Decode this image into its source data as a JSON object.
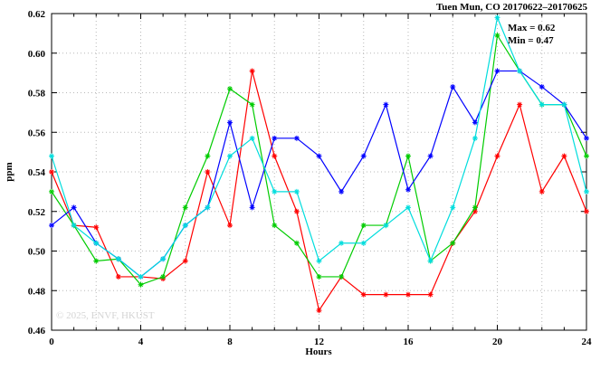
{
  "title": "Tuen Mun, CO 20170622–20170625",
  "annotations": {
    "max_label": "Max = 0.62",
    "min_label": "Min = 0.47"
  },
  "watermark": "© 2025, ENVF, HKUST",
  "axes": {
    "xlabel": "Hours",
    "ylabel": "ppm"
  },
  "chart_data": {
    "type": "line",
    "title": "Tuen Mun, CO 20170622–20170625",
    "xlabel": "Hours",
    "ylabel": "ppm",
    "xlim": [
      0,
      24
    ],
    "ylim": [
      0.46,
      0.62
    ],
    "x_ticks": [
      0,
      4,
      8,
      12,
      16,
      20,
      24
    ],
    "y_ticks": [
      0.46,
      0.48,
      0.5,
      0.52,
      0.54,
      0.56,
      0.58,
      0.6,
      0.62
    ],
    "grid": true,
    "grid_x_step": 2,
    "minor_x_tick_step": 1,
    "legend": "none",
    "max_value": 0.62,
    "min_value": 0.47,
    "x": [
      0,
      1,
      2,
      3,
      4,
      5,
      6,
      7,
      8,
      9,
      10,
      11,
      12,
      13,
      14,
      15,
      16,
      17,
      18,
      19,
      20,
      21,
      22,
      23,
      24
    ],
    "series": [
      {
        "name": "series-red",
        "color": "#ff0000",
        "values": [
          0.54,
          0.513,
          0.512,
          0.487,
          0.487,
          0.486,
          0.495,
          0.54,
          0.513,
          0.591,
          0.548,
          0.52,
          0.47,
          0.487,
          0.478,
          0.478,
          0.478,
          0.478,
          0.504,
          0.52,
          0.548,
          0.574,
          0.53,
          0.548,
          0.52
        ]
      },
      {
        "name": "series-green",
        "color": "#00cc00",
        "values": [
          0.53,
          0.513,
          0.495,
          0.496,
          0.483,
          0.487,
          0.522,
          0.548,
          0.582,
          0.574,
          0.513,
          0.504,
          0.487,
          0.487,
          0.513,
          0.513,
          0.548,
          0.495,
          0.504,
          0.522,
          0.609,
          0.591,
          0.574,
          0.574,
          0.548
        ]
      },
      {
        "name": "series-blue",
        "color": "#0000ff",
        "values": [
          0.513,
          0.522,
          0.504,
          0.496,
          0.487,
          0.496,
          0.513,
          0.522,
          0.565,
          0.522,
          0.557,
          0.557,
          0.548,
          0.53,
          0.548,
          0.574,
          0.531,
          0.548,
          0.583,
          0.565,
          0.591,
          0.591,
          0.583,
          0.574,
          0.557
        ]
      },
      {
        "name": "series-cyan",
        "color": "#00dddd",
        "values": [
          0.548,
          0.513,
          0.504,
          0.496,
          0.487,
          0.496,
          0.513,
          0.522,
          0.548,
          0.557,
          0.53,
          0.53,
          0.495,
          0.504,
          0.504,
          0.513,
          0.522,
          0.495,
          0.522,
          0.557,
          0.618,
          0.591,
          0.574,
          0.574,
          0.53
        ]
      }
    ]
  }
}
